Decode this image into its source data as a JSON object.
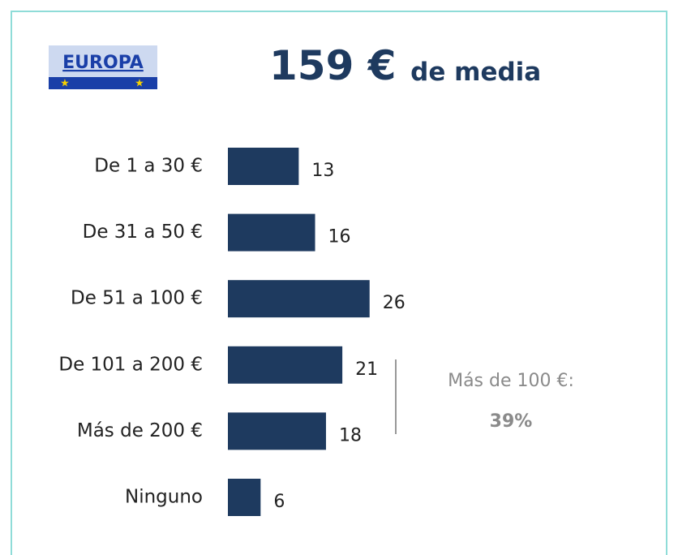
{
  "chart_data": {
    "type": "bar",
    "orientation": "horizontal",
    "badge": "EUROPA",
    "title": "159 €",
    "subtitle": "de media",
    "categories": [
      "De 1 a 30 €",
      "De 31 a 50 €",
      "De 51 a 100 €",
      "De 101 a 200 €",
      "Más de 200 €",
      "Ninguno"
    ],
    "values": [
      13,
      16,
      26,
      21,
      18,
      6
    ],
    "color": "#1e3a5f",
    "annotation": {
      "label": "Más de 100 €:",
      "value": 39,
      "value_label": "39%"
    }
  }
}
